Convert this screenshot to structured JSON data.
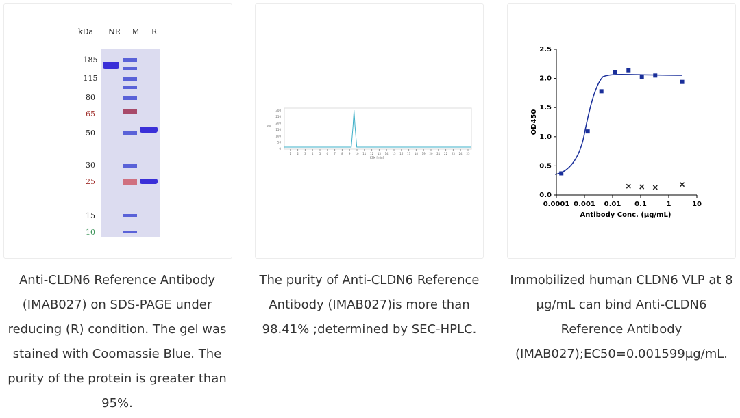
{
  "cards": [
    {
      "gel": {
        "header": [
          "kDa",
          "NR",
          "M",
          "R"
        ],
        "markers": [
          {
            "label": "185",
            "color": "#222222"
          },
          {
            "label": "115",
            "color": "#222222"
          },
          {
            "label": "80",
            "color": "#222222"
          },
          {
            "label": "65",
            "color": "#a0302c"
          },
          {
            "label": "50",
            "color": "#222222"
          },
          {
            "label": "30",
            "color": "#222222"
          },
          {
            "label": "25",
            "color": "#a0302c"
          },
          {
            "label": "15",
            "color": "#222222"
          },
          {
            "label": "10",
            "color": "#2a8a4a"
          }
        ]
      },
      "caption": "Anti-CLDN6 Reference Antibody (IMAB027) on SDS-PAGE under reducing (R) condition. The gel was stained with Coomassie Blue. The purity of the protein is greater than 95%."
    },
    {
      "hplc": {
        "xlim": [
          0,
          25
        ],
        "xticks": [
          1,
          2,
          3,
          4,
          5,
          6,
          7,
          8,
          9,
          10,
          11,
          12,
          13,
          14,
          15,
          16,
          17,
          18,
          19,
          20,
          21,
          22,
          23,
          24,
          25
        ],
        "ylim": [
          0,
          320
        ],
        "yticks": [
          0,
          50,
          100,
          150,
          200,
          250,
          300
        ],
        "xlabel": "RTM [min]",
        "ylabel": "mV",
        "color": "#3fb0c8"
      },
      "caption": "The purity of Anti-CLDN6 Reference Antibody (IMAB027)is more than 98.41% ;determined by SEC-HPLC."
    },
    {
      "chart": {
        "type": "scatter",
        "xlabel": "Antibody Conc. (μg/mL)",
        "ylabel": "OD450",
        "log_x": true,
        "xlim": [
          0.0001,
          10
        ],
        "xticks": [
          0.0001,
          0.001,
          0.01,
          0.1,
          1,
          10
        ],
        "ylim": [
          0,
          2.5
        ],
        "yticks": [
          {
            "value": 0,
            "label": "0.0"
          },
          {
            "value": 0.5,
            "label": "0.5"
          },
          {
            "value": 1,
            "label": "1.0"
          },
          {
            "value": 1.5,
            "label": "1.5"
          },
          {
            "value": 2,
            "label": "2.0"
          },
          {
            "value": 2.5,
            "label": "2.5"
          }
        ],
        "series": [
          {
            "marker": "square",
            "color": "#1a2f9a",
            "x": [
              0.00015,
              0.0013,
              0.004,
              0.012,
              0.037,
              0.11,
              0.33,
              3
            ],
            "values": [
              0.37,
              1.09,
              1.78,
              2.11,
              2.14,
              2.03,
              2.05,
              1.94
            ]
          },
          {
            "marker": "cross",
            "color": "#222222",
            "x": [
              0.037,
              0.11,
              0.33,
              3
            ],
            "values": [
              0.15,
              0.14,
              0.13,
              0.18
            ]
          }
        ]
      },
      "caption": "Immobilized human CLDN6 VLP at 8 μg/mL can bind Anti-CLDN6 Reference Antibody (IMAB027);EC50=0.001599μg/mL."
    }
  ]
}
